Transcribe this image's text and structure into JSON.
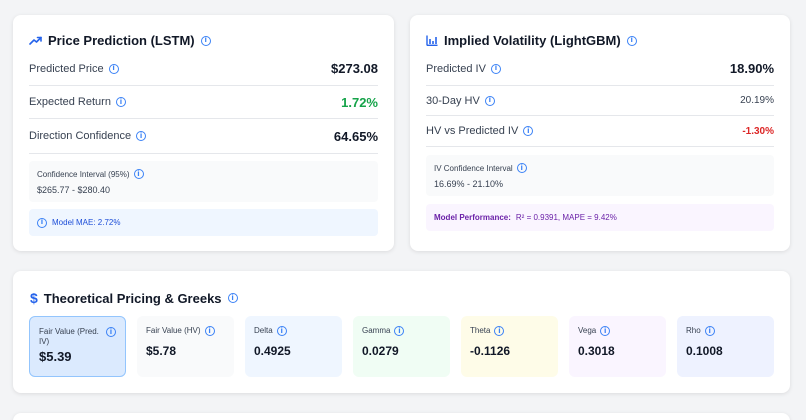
{
  "price_card": {
    "title": "Price Prediction (LSTM)",
    "rows": [
      {
        "label": "Predicted Price",
        "value": "$273.08"
      },
      {
        "label": "Expected Return",
        "value": "1.72%",
        "color": "#16a34a"
      },
      {
        "label": "Direction Confidence",
        "value": "64.65%"
      }
    ],
    "ci_label": "Confidence Interval (95%)",
    "ci_value": "$265.77 - $280.40",
    "mae": "Model MAE: 2.72%"
  },
  "iv_card": {
    "title": "Implied Volatility (LightGBM)",
    "rows": [
      {
        "label": "Predicted IV",
        "value": "18.90%"
      },
      {
        "label": "30-Day HV",
        "value": "20.19%"
      },
      {
        "label": "HV vs Predicted IV",
        "value": "-1.30%",
        "color": "#dc2626"
      }
    ],
    "ci_label": "IV Confidence Interval",
    "ci_value": "16.69% - 21.10%",
    "perf_label": "Model Performance:",
    "perf_value": "R² = 0.9391, MAPE = 9.42%"
  },
  "greeks_card": {
    "title": "Theoretical Pricing & Greeks",
    "items": [
      {
        "label": "Fair Value (Pred. IV)",
        "value": "$5.39"
      },
      {
        "label": "Fair Value (HV)",
        "value": "$5.78"
      },
      {
        "label": "Delta",
        "value": "0.4925"
      },
      {
        "label": "Gamma",
        "value": "0.0279"
      },
      {
        "label": "Theta",
        "value": "-0.1126"
      },
      {
        "label": "Vega",
        "value": "0.3018"
      },
      {
        "label": "Rho",
        "value": "0.1008"
      }
    ]
  },
  "colors": {
    "accent": "#3b82f6",
    "positive": "#16a34a",
    "negative": "#dc2626",
    "perf_text": "#7e22ce"
  },
  "icons": [
    "trending-up-icon",
    "bar-chart-icon",
    "dollar-icon",
    "info-icon"
  ]
}
